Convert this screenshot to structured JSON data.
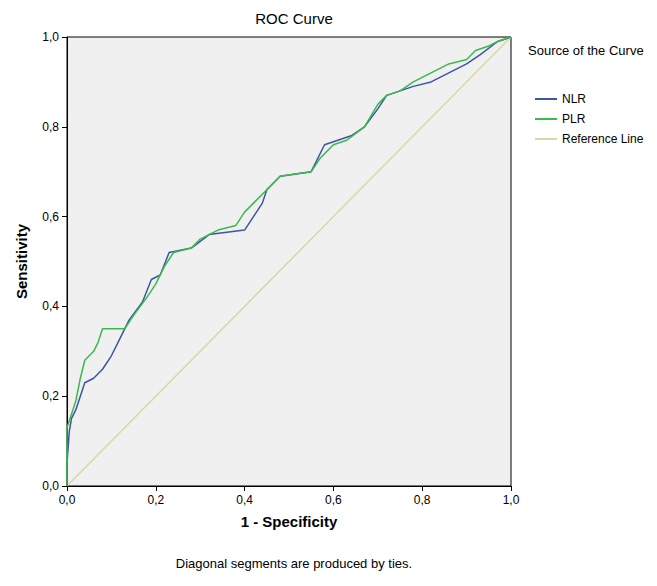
{
  "chart_data": {
    "type": "line",
    "title": "ROC Curve",
    "x_label": "1 - Specificity",
    "y_label": "Sensitivity",
    "legend_title": "Source of the Curve",
    "legend": "right",
    "grid": false,
    "annotations": [
      "Diagonal segments are produced by ties."
    ],
    "xlim": [
      0,
      1
    ],
    "ylim": [
      0,
      1
    ],
    "xticks": [
      {
        "value": 0,
        "label": "0,0"
      },
      {
        "value": 0.2,
        "label": "0,2"
      },
      {
        "value": 0.4,
        "label": "0,4"
      },
      {
        "value": 0.6,
        "label": "0,6"
      },
      {
        "value": 0.8,
        "label": "0,8"
      },
      {
        "value": 1,
        "label": "1,0"
      }
    ],
    "yticks": [
      {
        "value": 0,
        "label": "0,0"
      },
      {
        "value": 0.2,
        "label": "0,2"
      },
      {
        "value": 0.4,
        "label": "0,4"
      },
      {
        "value": 0.6,
        "label": "0,6"
      },
      {
        "value": 0.8,
        "label": "0,8"
      },
      {
        "value": 1,
        "label": "1,0"
      }
    ],
    "series": [
      {
        "name": "NLR",
        "color": "#3c55a5",
        "x": [
          0,
          0,
          0.005,
          0.01,
          0.02,
          0.03,
          0.04,
          0.06,
          0.08,
          0.1,
          0.12,
          0.14,
          0.17,
          0.19,
          0.21,
          0.23,
          0.28,
          0.32,
          0.4,
          0.42,
          0.44,
          0.45,
          0.48,
          0.55,
          0.58,
          0.64,
          0.67,
          0.7,
          0.72,
          0.78,
          0.82,
          0.86,
          0.9,
          0.93,
          0.97,
          1
        ],
        "values": [
          0,
          0.05,
          0.12,
          0.15,
          0.17,
          0.2,
          0.23,
          0.24,
          0.26,
          0.29,
          0.33,
          0.37,
          0.41,
          0.46,
          0.47,
          0.52,
          0.53,
          0.56,
          0.57,
          0.6,
          0.63,
          0.66,
          0.69,
          0.7,
          0.76,
          0.78,
          0.8,
          0.84,
          0.87,
          0.89,
          0.9,
          0.92,
          0.94,
          0.96,
          0.99,
          1
        ]
      },
      {
        "name": "PLR",
        "color": "#3cb94b",
        "x": [
          0,
          0,
          0.01,
          0.02,
          0.03,
          0.04,
          0.06,
          0.07,
          0.08,
          0.13,
          0.15,
          0.18,
          0.2,
          0.22,
          0.24,
          0.28,
          0.3,
          0.34,
          0.38,
          0.4,
          0.42,
          0.45,
          0.48,
          0.55,
          0.57,
          0.6,
          0.63,
          0.67,
          0.7,
          0.72,
          0.75,
          0.78,
          0.82,
          0.86,
          0.9,
          0.92,
          0.95,
          0.97,
          1
        ],
        "values": [
          0,
          0.13,
          0.16,
          0.19,
          0.24,
          0.28,
          0.3,
          0.32,
          0.35,
          0.35,
          0.38,
          0.42,
          0.45,
          0.49,
          0.52,
          0.53,
          0.55,
          0.57,
          0.58,
          0.61,
          0.63,
          0.66,
          0.69,
          0.7,
          0.73,
          0.76,
          0.77,
          0.8,
          0.85,
          0.87,
          0.88,
          0.9,
          0.92,
          0.94,
          0.95,
          0.97,
          0.98,
          0.99,
          1
        ]
      },
      {
        "name": "Reference Line",
        "color": "#d9d7a7",
        "x": [
          0,
          1
        ],
        "values": [
          0,
          1
        ]
      }
    ]
  }
}
